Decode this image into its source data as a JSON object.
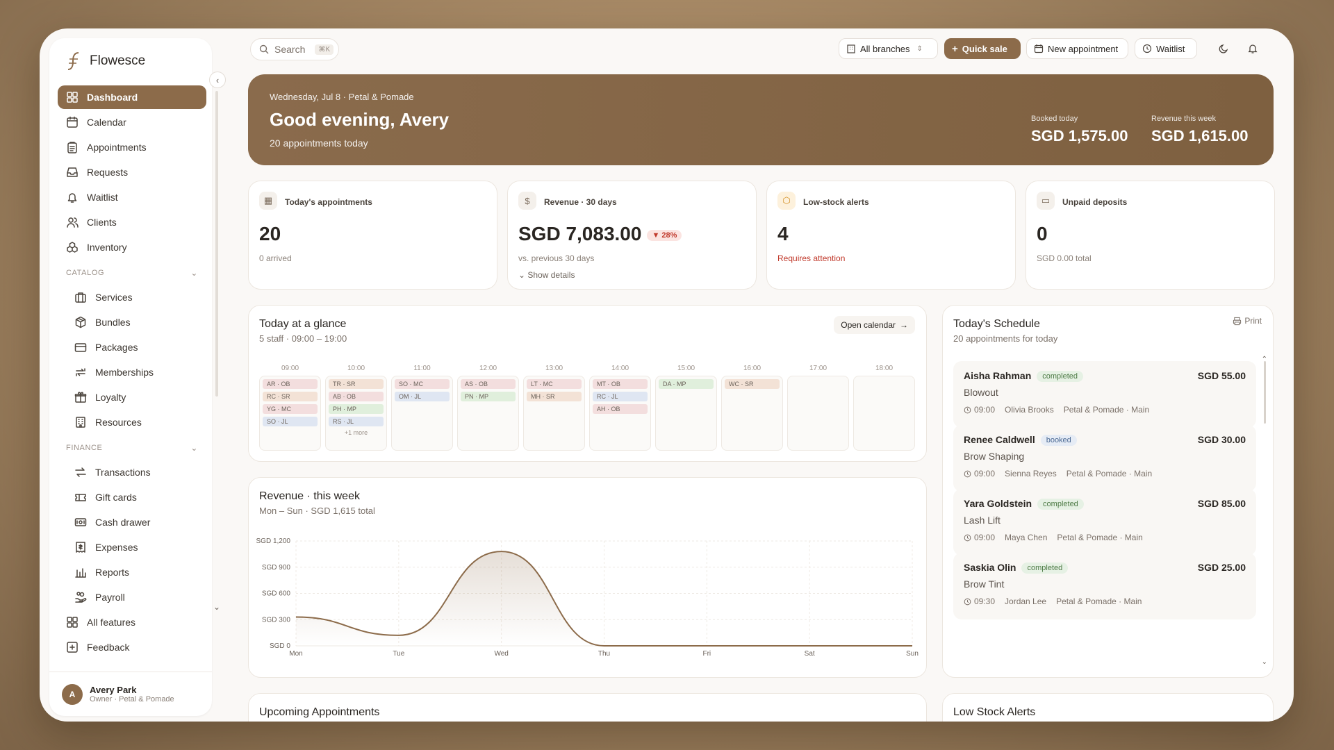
{
  "app": {
    "name": "Flowesce"
  },
  "sidebar": {
    "main_items": [
      {
        "label": "Dashboard",
        "icon": "grid-icon"
      },
      {
        "label": "Calendar",
        "icon": "calendar-icon"
      },
      {
        "label": "Appointments",
        "icon": "clipboard-icon"
      },
      {
        "label": "Requests",
        "icon": "inbox-icon"
      },
      {
        "label": "Waitlist",
        "icon": "bell-icon"
      },
      {
        "label": "Clients",
        "icon": "users-icon"
      },
      {
        "label": "Inventory",
        "icon": "boxes-icon"
      }
    ],
    "catalog_title": "CATALOG",
    "catalog_items": [
      {
        "label": "Services",
        "icon": "briefcase-icon"
      },
      {
        "label": "Bundles",
        "icon": "package-icon"
      },
      {
        "label": "Packages",
        "icon": "card-icon"
      },
      {
        "label": "Memberships",
        "icon": "repeat-icon"
      },
      {
        "label": "Loyalty",
        "icon": "gift-icon"
      },
      {
        "label": "Resources",
        "icon": "building-icon"
      }
    ],
    "finance_title": "FINANCE",
    "finance_items": [
      {
        "label": "Transactions",
        "icon": "arrows-icon"
      },
      {
        "label": "Gift cards",
        "icon": "ticket-icon"
      },
      {
        "label": "Cash drawer",
        "icon": "cash-icon"
      },
      {
        "label": "Expenses",
        "icon": "receipt-icon"
      },
      {
        "label": "Reports",
        "icon": "bar-chart-icon"
      },
      {
        "label": "Payroll",
        "icon": "hand-coins-icon"
      }
    ],
    "bottom_items": [
      {
        "label": "All features",
        "icon": "grid-icon"
      },
      {
        "label": "Feedback",
        "icon": "feedback-icon"
      }
    ],
    "profile": {
      "initial": "A",
      "name": "Avery Park",
      "role": "Owner · Petal & Pomade"
    }
  },
  "topbar": {
    "search_placeholder": "Search",
    "search_shortcut": "⌘K",
    "branch": "All branches",
    "quick_sale": "Quick sale",
    "new_appointment": "New appointment",
    "waitlist": "Waitlist"
  },
  "hero": {
    "date": "Wednesday, Jul 8 · Petal & Pomade",
    "greeting": "Good evening, Avery",
    "subtitle": "20 appointments today",
    "booked_label": "Booked today",
    "booked_value": "SGD 1,575.00",
    "revenue_label": "Revenue this week",
    "revenue_value": "SGD 1,615.00"
  },
  "kpis": [
    {
      "title": "Today's appointments",
      "value": "20",
      "note": "0 arrived"
    },
    {
      "title": "Revenue · 30 days",
      "value": "SGD 7,083.00",
      "trend": "▼ 28%",
      "note": "vs. previous 30 days",
      "details": "Show details"
    },
    {
      "title": "Low-stock alerts",
      "value": "4",
      "note": "Requires attention"
    },
    {
      "title": "Unpaid deposits",
      "value": "0",
      "note": "SGD 0.00 total"
    }
  ],
  "glance": {
    "title": "Today at a glance",
    "subtitle": "5 staff · 09:00 – 19:00",
    "open_calendar": "Open calendar",
    "slots": [
      {
        "hour": "09:00",
        "chips": [
          {
            "t": "AR · OB",
            "c": "#f3dede"
          },
          {
            "t": "RC · SR",
            "c": "#f3e2d6"
          },
          {
            "t": "YG · MC",
            "c": "#f3dede"
          },
          {
            "t": "SO · JL",
            "c": "#dfe6f2"
          }
        ],
        "more": ""
      },
      {
        "hour": "10:00",
        "chips": [
          {
            "t": "TR · SR",
            "c": "#f3e2d6"
          },
          {
            "t": "AB · OB",
            "c": "#f3dede"
          },
          {
            "t": "PH · MP",
            "c": "#e0efdc"
          },
          {
            "t": "RS · JL",
            "c": "#dfe6f2"
          }
        ],
        "more": "+1 more"
      },
      {
        "hour": "11:00",
        "chips": [
          {
            "t": "SO · MC",
            "c": "#f3dede"
          },
          {
            "t": "OM · JL",
            "c": "#dfe6f2"
          }
        ],
        "more": ""
      },
      {
        "hour": "12:00",
        "chips": [
          {
            "t": "AS · OB",
            "c": "#f3dede"
          },
          {
            "t": "PN · MP",
            "c": "#e0efdc"
          }
        ],
        "more": ""
      },
      {
        "hour": "13:00",
        "chips": [
          {
            "t": "LT · MC",
            "c": "#f3dede"
          },
          {
            "t": "MH · SR",
            "c": "#f3e2d6"
          }
        ],
        "more": ""
      },
      {
        "hour": "14:00",
        "chips": [
          {
            "t": "MT · OB",
            "c": "#f3dede"
          },
          {
            "t": "RC · JL",
            "c": "#dfe6f2"
          },
          {
            "t": "AH · OB",
            "c": "#f3dede"
          }
        ],
        "more": ""
      },
      {
        "hour": "15:00",
        "chips": [
          {
            "t": "DA · MP",
            "c": "#e0efdc"
          }
        ],
        "more": ""
      },
      {
        "hour": "16:00",
        "chips": [
          {
            "t": "WC · SR",
            "c": "#f3e2d6"
          }
        ],
        "more": ""
      },
      {
        "hour": "17:00",
        "chips": [],
        "more": ""
      },
      {
        "hour": "18:00",
        "chips": [],
        "more": ""
      }
    ]
  },
  "revenue_week": {
    "title": "Revenue · this week",
    "subtitle": "Mon – Sun · SGD 1,615 total"
  },
  "chart_data": {
    "type": "area",
    "categories": [
      "Mon",
      "Tue",
      "Wed",
      "Thu",
      "Fri",
      "Sat",
      "Sun"
    ],
    "values": [
      330,
      120,
      1080,
      0,
      0,
      0,
      0
    ],
    "yticks": [
      "SGD 0",
      "SGD 300",
      "SGD 600",
      "SGD 900",
      "SGD 1,200"
    ],
    "ylim": [
      0,
      1200
    ],
    "grid": true,
    "color": "#8c6b4a"
  },
  "schedule": {
    "title": "Today's Schedule",
    "subtitle": "20 appointments for today",
    "print": "Print",
    "items": [
      {
        "name": "Aisha Rahman",
        "status": "completed",
        "price": "SGD 55.00",
        "service": "Blowout",
        "time": "09:00",
        "staff": "Olivia Brooks",
        "location": "Petal & Pomade · Main"
      },
      {
        "name": "Renee Caldwell",
        "status": "booked",
        "price": "SGD 30.00",
        "service": "Brow Shaping",
        "time": "09:00",
        "staff": "Sienna Reyes",
        "location": "Petal & Pomade · Main"
      },
      {
        "name": "Yara Goldstein",
        "status": "completed",
        "price": "SGD 85.00",
        "service": "Lash Lift",
        "time": "09:00",
        "staff": "Maya Chen",
        "location": "Petal & Pomade · Main"
      },
      {
        "name": "Saskia Olin",
        "status": "completed",
        "price": "SGD 25.00",
        "service": "Brow Tint",
        "time": "09:30",
        "staff": "Jordan Lee",
        "location": "Petal & Pomade · Main"
      }
    ]
  },
  "upcoming": {
    "title": "Upcoming Appointments"
  },
  "low_stock": {
    "title": "Low Stock Alerts"
  },
  "colors": {
    "accent": "#8c6b4a",
    "danger": "#c0392b"
  }
}
